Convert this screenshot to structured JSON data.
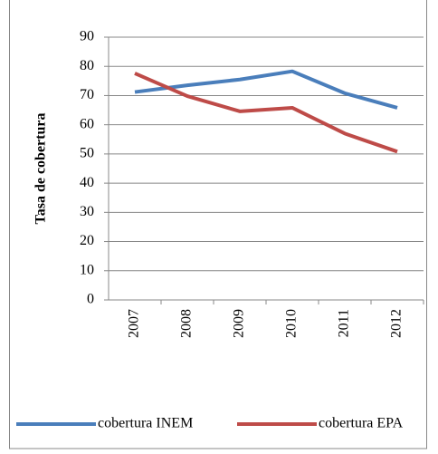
{
  "chart_data": {
    "type": "line",
    "y_label": "Tasa de cobertura",
    "categories": [
      "2007",
      "2008",
      "2009",
      "2010",
      "2011",
      "2012"
    ],
    "series": [
      {
        "name": "cobertura INEM",
        "color": "#4a7ebb",
        "values": [
          71.2,
          73.5,
          75.5,
          78.3,
          70.8,
          65.8
        ]
      },
      {
        "name": "cobertura EPA",
        "color": "#be4b48",
        "values": [
          77.6,
          69.8,
          64.6,
          65.8,
          57.0,
          50.8
        ]
      }
    ],
    "ylim": [
      0,
      90
    ],
    "yticks": [
      0,
      10,
      20,
      30,
      40,
      50,
      60,
      70,
      80,
      90
    ],
    "grid": true
  }
}
